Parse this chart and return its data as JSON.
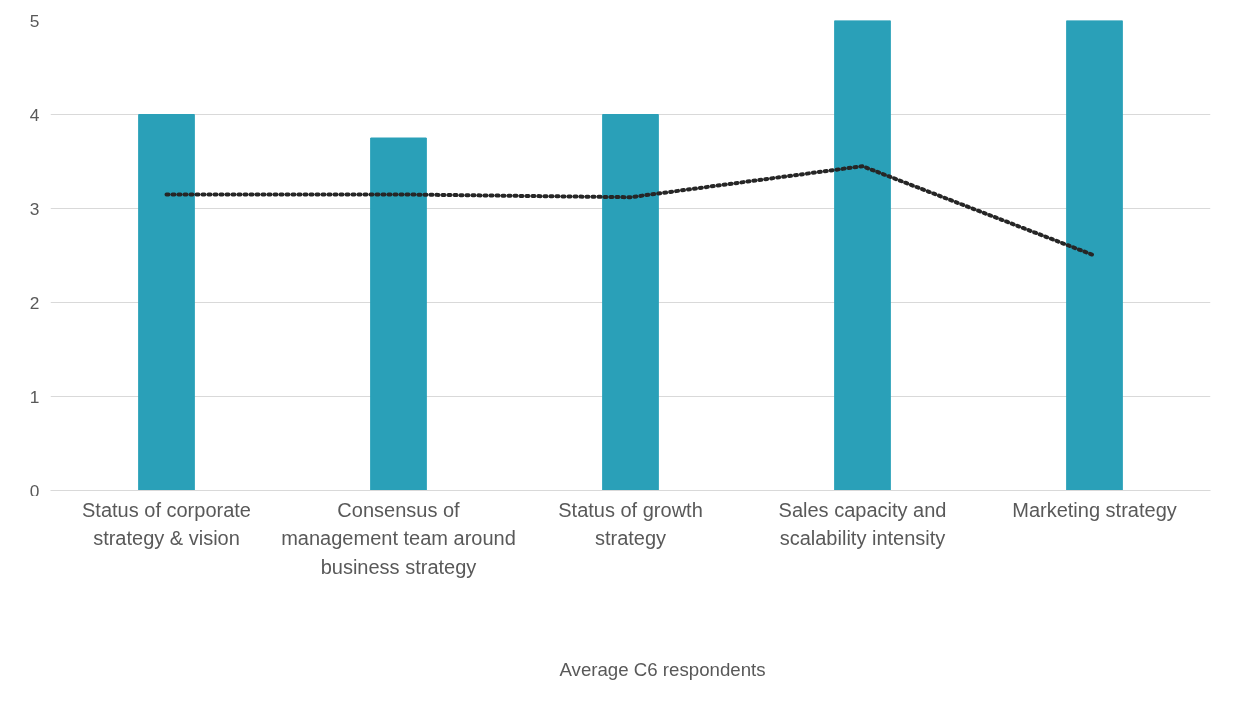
{
  "chart_data": {
    "type": "bar",
    "categories": [
      "Status of corporate strategy & vision",
      "Consensus of management team around business strategy",
      "Status of growth strategy",
      "Sales capacity and scalability intensity",
      "Marketing strategy"
    ],
    "series": [
      {
        "color": "#2aa0b8",
        "values": [
          4,
          3.75,
          4,
          5,
          5
        ]
      },
      {
        "type": "line",
        "name": "Average C6 respondents",
        "color": "#262626",
        "line_style": "dotted",
        "values": [
          3.15,
          3.15,
          3.12,
          3.45,
          2.5
        ]
      }
    ],
    "ylim": [
      0,
      5
    ],
    "yticks": [
      0,
      1,
      2,
      3,
      4,
      5
    ],
    "grid": "y",
    "legend": "bottom"
  }
}
